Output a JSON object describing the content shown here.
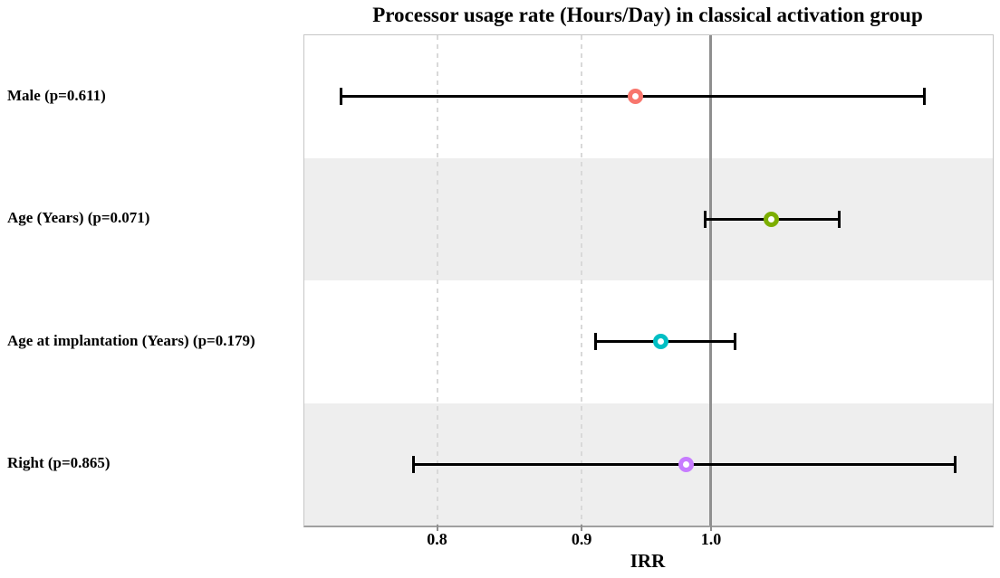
{
  "chart_data": {
    "type": "scatter",
    "subtype": "forest-plot",
    "title": "Processor usage rate (Hours/Day) in classical activation group",
    "xlabel": "IRR",
    "x_scale": "log",
    "xlim": [
      0.718,
      1.258
    ],
    "x_ticks": [
      {
        "value": 0.8,
        "label": "0.8"
      },
      {
        "value": 0.9,
        "label": "0.9"
      },
      {
        "value": 1.0,
        "label": "1.0"
      }
    ],
    "reference_line": 1.0,
    "grid": "vertical-dashed-at-ticks",
    "legend": "none",
    "band_colors": [
      "#ffffff",
      "#eeeeee"
    ],
    "rows": [
      {
        "label": "Male (p=0.611)",
        "p_value": 0.611,
        "irr": 0.94,
        "ci_low": 0.74,
        "ci_high": 1.19,
        "color": "#F8766D"
      },
      {
        "label": "Age (Years) (p=0.071)",
        "p_value": 0.071,
        "irr": 1.05,
        "ci_low": 0.995,
        "ci_high": 1.11,
        "color": "#7CAE00"
      },
      {
        "label": "Age at implantation (Years) (p=0.179)",
        "p_value": 0.179,
        "irr": 0.96,
        "ci_low": 0.91,
        "ci_high": 1.02,
        "color": "#00BFC4"
      },
      {
        "label": "Right (p=0.865)",
        "p_value": 0.865,
        "irr": 0.98,
        "ci_low": 0.785,
        "ci_high": 1.22,
        "color": "#C77CFF"
      }
    ]
  }
}
